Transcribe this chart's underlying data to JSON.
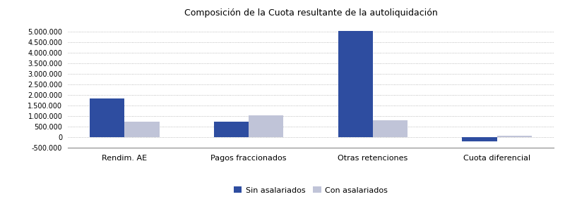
{
  "title": "Composición de la Cuota resultante de la autoliquidación",
  "categories": [
    "Rendim. AE",
    "Pagos fraccionados",
    "Otras retenciones",
    "Cuota diferencial"
  ],
  "sin_asalariados": [
    1850000,
    750000,
    5050000,
    -200000
  ],
  "con_asalariados": [
    730000,
    1050000,
    800000,
    75000
  ],
  "color_sin": "#2E4DA0",
  "color_con": "#C0C4D8",
  "ylim": [
    -500000,
    5500000
  ],
  "yticks": [
    -500000,
    0,
    500000,
    1000000,
    1500000,
    2000000,
    2500000,
    3000000,
    3500000,
    4000000,
    4500000,
    5000000
  ],
  "legend_sin": "Sin asalariados",
  "legend_con": "Con asalariados",
  "bg_color": "#FFFFFF",
  "grid_color": "#AAAAAA",
  "bar_width": 0.28,
  "title_fontsize": 9,
  "tick_fontsize": 7,
  "xlabel_fontsize": 8
}
